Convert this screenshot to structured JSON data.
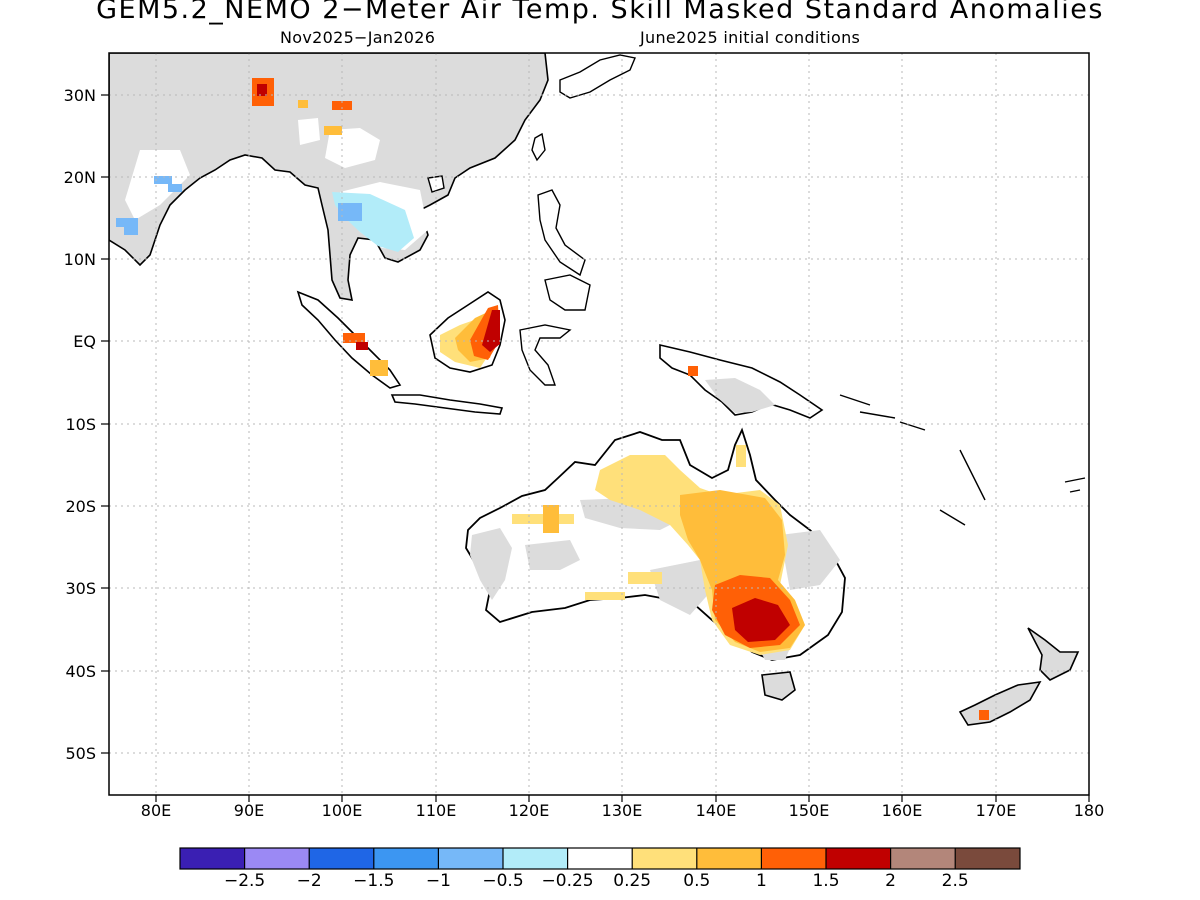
{
  "title": "GEM5.2_NEMO 2−Meter Air Temp. Skill Masked Standard Anomalies",
  "subtitle_left": "Nov2025−Jan2026",
  "subtitle_right": "June2025 initial conditions",
  "map": {
    "lon_range": [
      75,
      180
    ],
    "lat_range": [
      -55,
      35
    ],
    "lat_labels": [
      "30N",
      "20N",
      "10N",
      "EQ",
      "10S",
      "20S",
      "30S",
      "40S",
      "50S"
    ],
    "lon_labels": [
      "80E",
      "90E",
      "100E",
      "110E",
      "120E",
      "130E",
      "140E",
      "150E",
      "160E",
      "170E",
      "180"
    ],
    "land_no_skill_color": "#dcdcdc",
    "ocean_color": "#ffffff"
  },
  "colorbar": {
    "colors": [
      "#3a1fb3",
      "#9b89f4",
      "#1f66e6",
      "#3c96f2",
      "#76b8f8",
      "#b2ecf9",
      "#ffffff",
      "#ffe07a",
      "#ffbd3a",
      "#ff6006",
      "#c00000",
      "#b3867a",
      "#7a4a3c"
    ],
    "labels": [
      "−2.5",
      "−2",
      "−1.5",
      "−1",
      "−0.5",
      "−0.25",
      "0.25",
      "0.5",
      "1",
      "1.5",
      "2",
      "2.5"
    ]
  }
}
